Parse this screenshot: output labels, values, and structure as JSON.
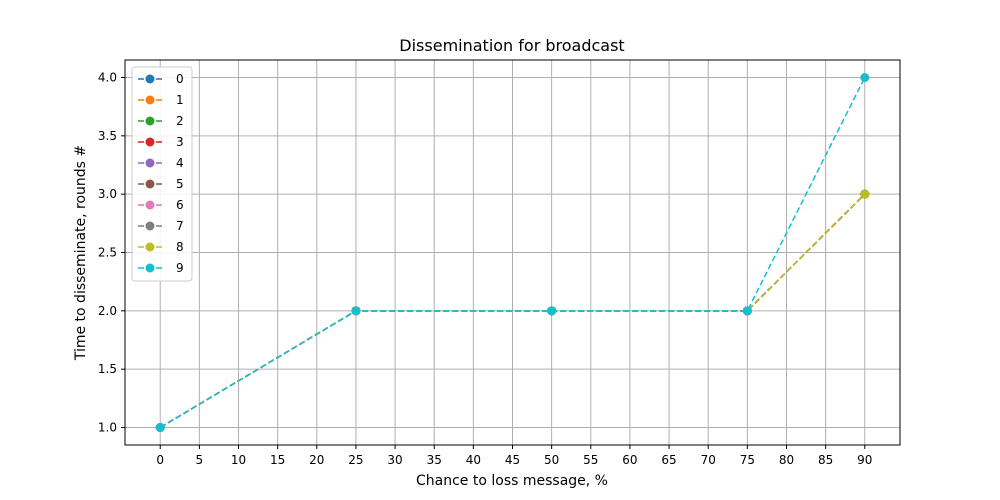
{
  "chart_data": {
    "type": "line",
    "title": "Dissemination for broadcast",
    "xlabel": "Chance to loss message, %",
    "ylabel": "Time to disseminate, rounds #",
    "x": [
      0,
      25,
      50,
      75,
      90
    ],
    "xticks": [
      0,
      5,
      10,
      15,
      20,
      25,
      30,
      35,
      40,
      45,
      50,
      55,
      60,
      65,
      70,
      75,
      80,
      85,
      90
    ],
    "yticks": [
      1.0,
      1.5,
      2.0,
      2.5,
      3.0,
      3.5,
      4.0
    ],
    "xlim": [
      -4.5,
      94.5
    ],
    "ylim": [
      0.85,
      4.15
    ],
    "grid": true,
    "legend_position": "upper-left",
    "line_style": "dashed",
    "marker": "circle",
    "series": [
      {
        "name": "0",
        "color": "#1f77b4",
        "values": [
          1,
          2,
          2,
          2,
          3
        ]
      },
      {
        "name": "1",
        "color": "#ff7f0e",
        "values": [
          1,
          2,
          2,
          2,
          3
        ]
      },
      {
        "name": "2",
        "color": "#2ca02c",
        "values": [
          1,
          2,
          2,
          2,
          3
        ]
      },
      {
        "name": "3",
        "color": "#d62728",
        "values": [
          1,
          2,
          2,
          2,
          3
        ]
      },
      {
        "name": "4",
        "color": "#9467bd",
        "values": [
          1,
          2,
          2,
          2,
          3
        ]
      },
      {
        "name": "5",
        "color": "#8c564b",
        "values": [
          1,
          2,
          2,
          2,
          3
        ]
      },
      {
        "name": "6",
        "color": "#e377c2",
        "values": [
          1,
          2,
          2,
          2,
          3
        ]
      },
      {
        "name": "7",
        "color": "#7f7f7f",
        "values": [
          1,
          2,
          2,
          2,
          3
        ]
      },
      {
        "name": "8",
        "color": "#bcbd22",
        "values": [
          1,
          2,
          2,
          2,
          3
        ]
      },
      {
        "name": "9",
        "color": "#17becf",
        "values": [
          1,
          2,
          2,
          2,
          4
        ]
      }
    ]
  }
}
